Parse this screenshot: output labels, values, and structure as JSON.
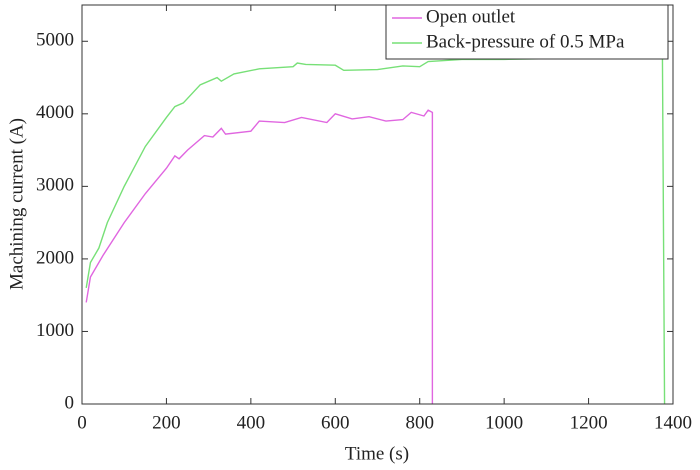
{
  "chart_data": {
    "type": "line",
    "x_label": "Time (s)",
    "y_label": "Machining current (A)",
    "xlim": [
      0,
      1400
    ],
    "xticks": [
      0,
      200,
      400,
      600,
      800,
      1000,
      1200,
      1400
    ],
    "ylim": [
      0,
      5500
    ],
    "yticks": [
      0,
      1000,
      2000,
      3000,
      4000,
      5000
    ],
    "legend_position": "upper-right",
    "series": [
      {
        "name": "Open outlet",
        "color": "#e066e0",
        "x": [
          10,
          20,
          50,
          100,
          150,
          200,
          220,
          230,
          250,
          290,
          310,
          330,
          340,
          400,
          420,
          480,
          520,
          580,
          600,
          640,
          680,
          720,
          760,
          780,
          810,
          820,
          830,
          830
        ],
        "values": [
          1400,
          1750,
          2050,
          2500,
          2900,
          3250,
          3420,
          3380,
          3500,
          3700,
          3680,
          3800,
          3720,
          3760,
          3900,
          3880,
          3950,
          3880,
          4000,
          3930,
          3960,
          3900,
          3920,
          4020,
          3970,
          4050,
          4020,
          0
        ]
      },
      {
        "name": "Back-pressure of 0.5 MPa",
        "color": "#77e077",
        "x": [
          10,
          20,
          40,
          60,
          100,
          150,
          200,
          220,
          240,
          280,
          320,
          330,
          360,
          420,
          500,
          510,
          530,
          600,
          620,
          700,
          760,
          800,
          820,
          900,
          1000,
          1100,
          1200,
          1300,
          1360,
          1375,
          1380
        ],
        "values": [
          1600,
          1950,
          2150,
          2500,
          3000,
          3550,
          3950,
          4100,
          4150,
          4400,
          4500,
          4450,
          4550,
          4620,
          4650,
          4700,
          4680,
          4670,
          4600,
          4610,
          4660,
          4650,
          4720,
          4750,
          4750,
          4760,
          4760,
          4760,
          4770,
          4760,
          0
        ]
      }
    ]
  }
}
